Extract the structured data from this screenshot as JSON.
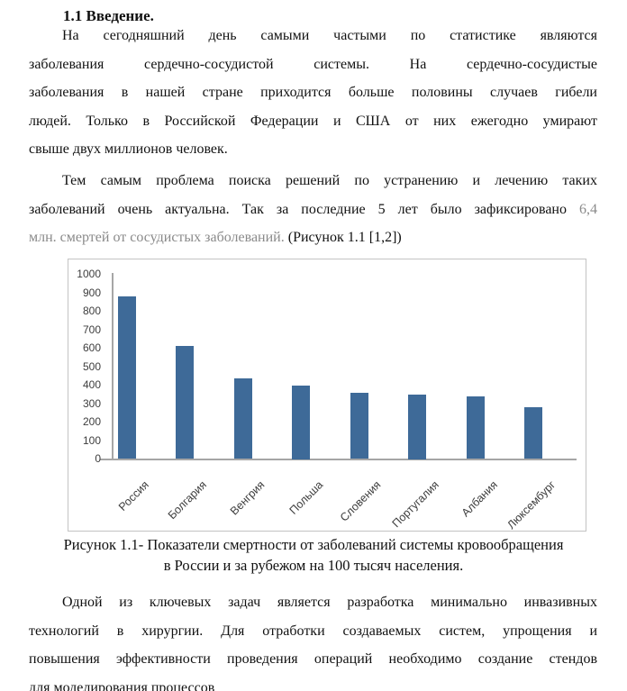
{
  "document": {
    "heading": "1.1 Введение.",
    "paragraph1_lines": [
      "На сегодняшний день самыми частыми по статистике являются",
      "заболевания сердечно-сосудистой системы. На сердечно-сосудистые",
      "заболевания в нашей стране приходится больше половины случаев гибели",
      "людей. Только в Российской Федерации и США от них ежегодно умирают",
      "свыше двух миллионов человек."
    ],
    "paragraph2": {
      "line1": "Тем самым проблема поиска решений по устранению и лечению таких",
      "line2_black": "заболеваний очень актуальна. Так за последние 5 лет было зафиксировано ",
      "line2_gray": "6,4",
      "line3_gray": "млн. смертей от сосудистых заболеваний. ",
      "line3_black": "(Рисунок 1.1 [1,2])"
    },
    "figure_caption_line1": "Рисунок 1.1- Показатели смертности от заболеваний системы кровообращения",
    "figure_caption_line2": "в России и за рубежом на 100 тысяч населения.",
    "paragraph3_lines": [
      "Одной из ключевых задач является разработка минимально инвазивных",
      "технологий в хирургии. Для отработки создаваемых систем, упрощения и",
      "повышения эффективности проведения операций необходимо создание стендов",
      "для моделирования процессов"
    ]
  },
  "colors": {
    "text": "#111111",
    "muted_text": "#8a8a8a",
    "bar": "#3E6A98",
    "axis": "#a6a6a6",
    "chart_border": "#c3c3c3",
    "tick_label": "#3d3d3d"
  },
  "chart_data": {
    "type": "bar",
    "categories": [
      "Россия",
      "Болгария",
      "Венгрия",
      "Польша",
      "Словения",
      "Португалия",
      "Албания",
      "Люксембург"
    ],
    "values": [
      880,
      610,
      435,
      400,
      360,
      350,
      340,
      280
    ],
    "title": "",
    "xlabel": "",
    "ylabel": "",
    "ylim": [
      0,
      1000
    ],
    "ytick_step": 100,
    "grid": false,
    "legend": false
  }
}
